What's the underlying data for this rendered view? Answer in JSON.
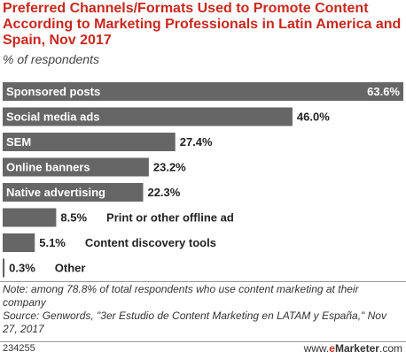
{
  "title": "Preferred Channels/Formats Used to Promote Content According to Marketing Professionals in Latin America and Spain, Nov 2017",
  "subtitle": "% of respondents",
  "chart_data": {
    "type": "bar",
    "orientation": "horizontal",
    "title": "Preferred Channels/Formats Used to Promote Content According to Marketing Professionals in Latin America and Spain, Nov 2017",
    "subtitle": "% of respondents",
    "categories": [
      "Sponsored posts",
      "Social media ads",
      "SEM",
      "Online banners",
      "Native advertising",
      "Print or other offline ad",
      "Content discovery tools",
      "Other"
    ],
    "values": [
      63.6,
      46.0,
      27.4,
      23.2,
      22.3,
      8.5,
      5.1,
      0.3
    ],
    "value_labels": [
      "63.6%",
      "46.0%",
      "27.4%",
      "23.2%",
      "22.3%",
      "8.5%",
      "5.1%",
      "0.3%"
    ],
    "xlim": [
      0,
      63.6
    ],
    "bar_color": "#666666",
    "grid": false,
    "legend": "none"
  },
  "note": "Note: among 78.8% of total respondents who use content marketing at their company",
  "source": "Source: Genwords, \"3er Estudio de Content Marketing en LATAM y España,\" Nov 27, 2017",
  "footer": {
    "chart_id": "234255",
    "brand_prefix": "www.",
    "brand_e": "e",
    "brand_name": "Marketer",
    "brand_suffix": ".com"
  },
  "colors": {
    "title": "#c8281e",
    "bar": "#666666",
    "label_on_bar": "#ffffff",
    "label_off_bar": "#222222"
  }
}
